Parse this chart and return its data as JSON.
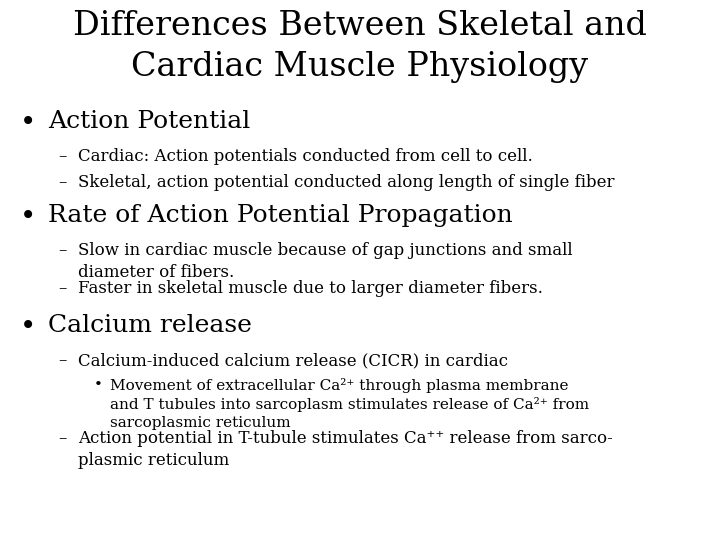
{
  "title_line1": "Differences Between Skeletal and",
  "title_line2": "Cardiac Muscle Physiology",
  "background_color": "#ffffff",
  "text_color": "#000000",
  "title_fontsize": 24,
  "bullet_fontsize": 18,
  "sub_fontsize": 12,
  "subsub_fontsize": 11,
  "bullet1_header": "Action Potential",
  "bullet1_subs": [
    "Cardiac: Action potentials conducted from cell to cell.",
    "Skeletal, action potential conducted along length of single fiber"
  ],
  "bullet2_header": "Rate of Action Potential Propagation",
  "bullet2_subs": [
    "Slow in cardiac muscle because of gap junctions and small\ndiameter of fibers.",
    "Faster in skeletal muscle due to larger diameter fibers."
  ],
  "bullet3_header": "Calcium release",
  "bullet3_sub1": "Calcium-induced calcium release (CICR) in cardiac",
  "bullet3_subsub": "Movement of extracellular Ca²⁺ through plasma membrane\nand T tubules into sarcoplasm stimulates release of Ca²⁺ from\nsarcoplasmic reticulum",
  "bullet3_sub2": "Action potential in T-tubule stimulates Ca⁺⁺ release from sarco-\nplasmic reticulum"
}
